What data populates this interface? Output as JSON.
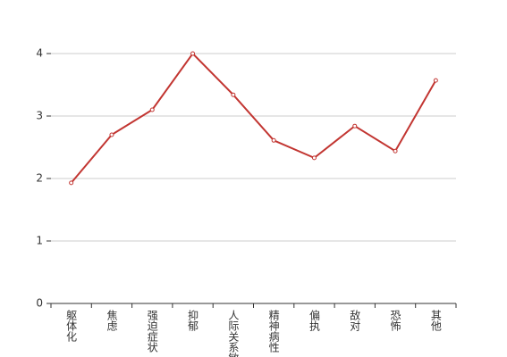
{
  "chart_data": {
    "type": "line",
    "categories": [
      "躯体化",
      "焦虑",
      "强迫症状",
      "抑郁",
      "人际关系敏感",
      "精神病性",
      "偏执",
      "敌对",
      "恐怖",
      "其他"
    ],
    "values": [
      1.93,
      2.7,
      3.1,
      4,
      3.34,
      2.61,
      2.33,
      2.84,
      2.44,
      3.57
    ],
    "color": "#c23531",
    "ylim": [
      0,
      4
    ],
    "yticks": [
      0,
      1,
      2,
      3,
      4
    ],
    "grid": true
  }
}
